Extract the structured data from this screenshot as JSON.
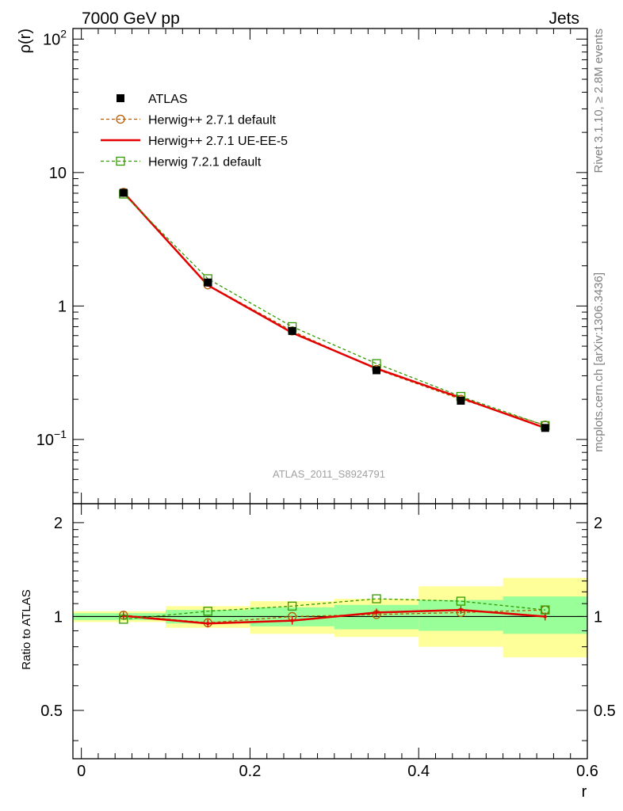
{
  "header": {
    "left": "7000 GeV pp",
    "right": "Jets"
  },
  "side_text": {
    "upper": "Rivet 3.1.10, ≥ 2.8M events",
    "lower": "mcplots.cern.ch [arXiv:1306.3436]"
  },
  "watermark": "ATLAS_2011_S8924791",
  "chart_data": {
    "type": "line",
    "xlabel": "r",
    "ylabel_main": "ρ(r)",
    "ylabel_ratio": "Ratio to ATLAS",
    "xlim": [
      -0.01,
      0.6
    ],
    "ylim_main": [
      0.033,
      120
    ],
    "yscale_main": "log",
    "ylim_ratio": [
      0.35,
      2.3
    ],
    "yscale_ratio": "log",
    "x_ticks": [
      "0",
      "0.2",
      "0.4",
      "0.6"
    ],
    "x_tick_values": [
      0,
      0.2,
      0.4,
      0.6
    ],
    "y_ticks_main": [
      {
        "value": 100,
        "base": "10",
        "exp": "2"
      },
      {
        "value": 10,
        "base": "10",
        "exp": ""
      },
      {
        "value": 1,
        "base": "1",
        "exp": ""
      },
      {
        "value": 0.1,
        "base": "10",
        "exp": "−1"
      }
    ],
    "y_ticks_ratio": [
      {
        "value": 2,
        "label": "2"
      },
      {
        "value": 1,
        "label": "1"
      },
      {
        "value": 0.5,
        "label": "0.5"
      }
    ],
    "legend_position": "top-left",
    "x": [
      0.05,
      0.15,
      0.25,
      0.35,
      0.45,
      0.55
    ],
    "data": {
      "name": "ATLAS",
      "values": [
        7.05,
        1.5,
        0.65,
        0.33,
        0.195,
        0.122
      ]
    },
    "series": [
      {
        "name": "Herwig++ 2.7.1 default",
        "color": "#b35900",
        "dash": "4,3",
        "marker": "circle",
        "values": [
          7.1,
          1.44,
          0.65,
          0.335,
          0.2,
          0.128
        ],
        "ratio": [
          1.01,
          0.955,
          1.0,
          1.015,
          1.03,
          1.05
        ]
      },
      {
        "name": "Herwig++ 2.7.1 UE-EE-5",
        "color": "#e30000",
        "dash": "",
        "marker": "none",
        "values": [
          7.1,
          1.43,
          0.63,
          0.34,
          0.205,
          0.122
        ],
        "ratio": [
          1.005,
          0.95,
          0.97,
          1.03,
          1.05,
          1.0
        ]
      },
      {
        "name": "Herwig 7.2.1 default",
        "color": "#339900",
        "dash": "4,3",
        "marker": "square",
        "values": [
          6.9,
          1.6,
          0.7,
          0.37,
          0.21,
          0.127
        ],
        "ratio": [
          0.98,
          1.04,
          1.08,
          1.14,
          1.12,
          1.05
        ]
      }
    ],
    "bands": {
      "bins": [
        [
          -0.01,
          0.1
        ],
        [
          0.1,
          0.2
        ],
        [
          0.2,
          0.3
        ],
        [
          0.3,
          0.4
        ],
        [
          0.4,
          0.5
        ],
        [
          0.5,
          0.6
        ]
      ],
      "stat_color": "#99ff99",
      "total_color": "#ffff99",
      "stat": [
        [
          0.975,
          1.025
        ],
        [
          0.95,
          1.05
        ],
        [
          0.93,
          1.07
        ],
        [
          0.91,
          1.09
        ],
        [
          0.9,
          1.13
        ],
        [
          0.88,
          1.16
        ]
      ],
      "total": [
        [
          0.96,
          1.04
        ],
        [
          0.92,
          1.08
        ],
        [
          0.88,
          1.12
        ],
        [
          0.86,
          1.14
        ],
        [
          0.8,
          1.25
        ],
        [
          0.74,
          1.33
        ]
      ]
    }
  }
}
